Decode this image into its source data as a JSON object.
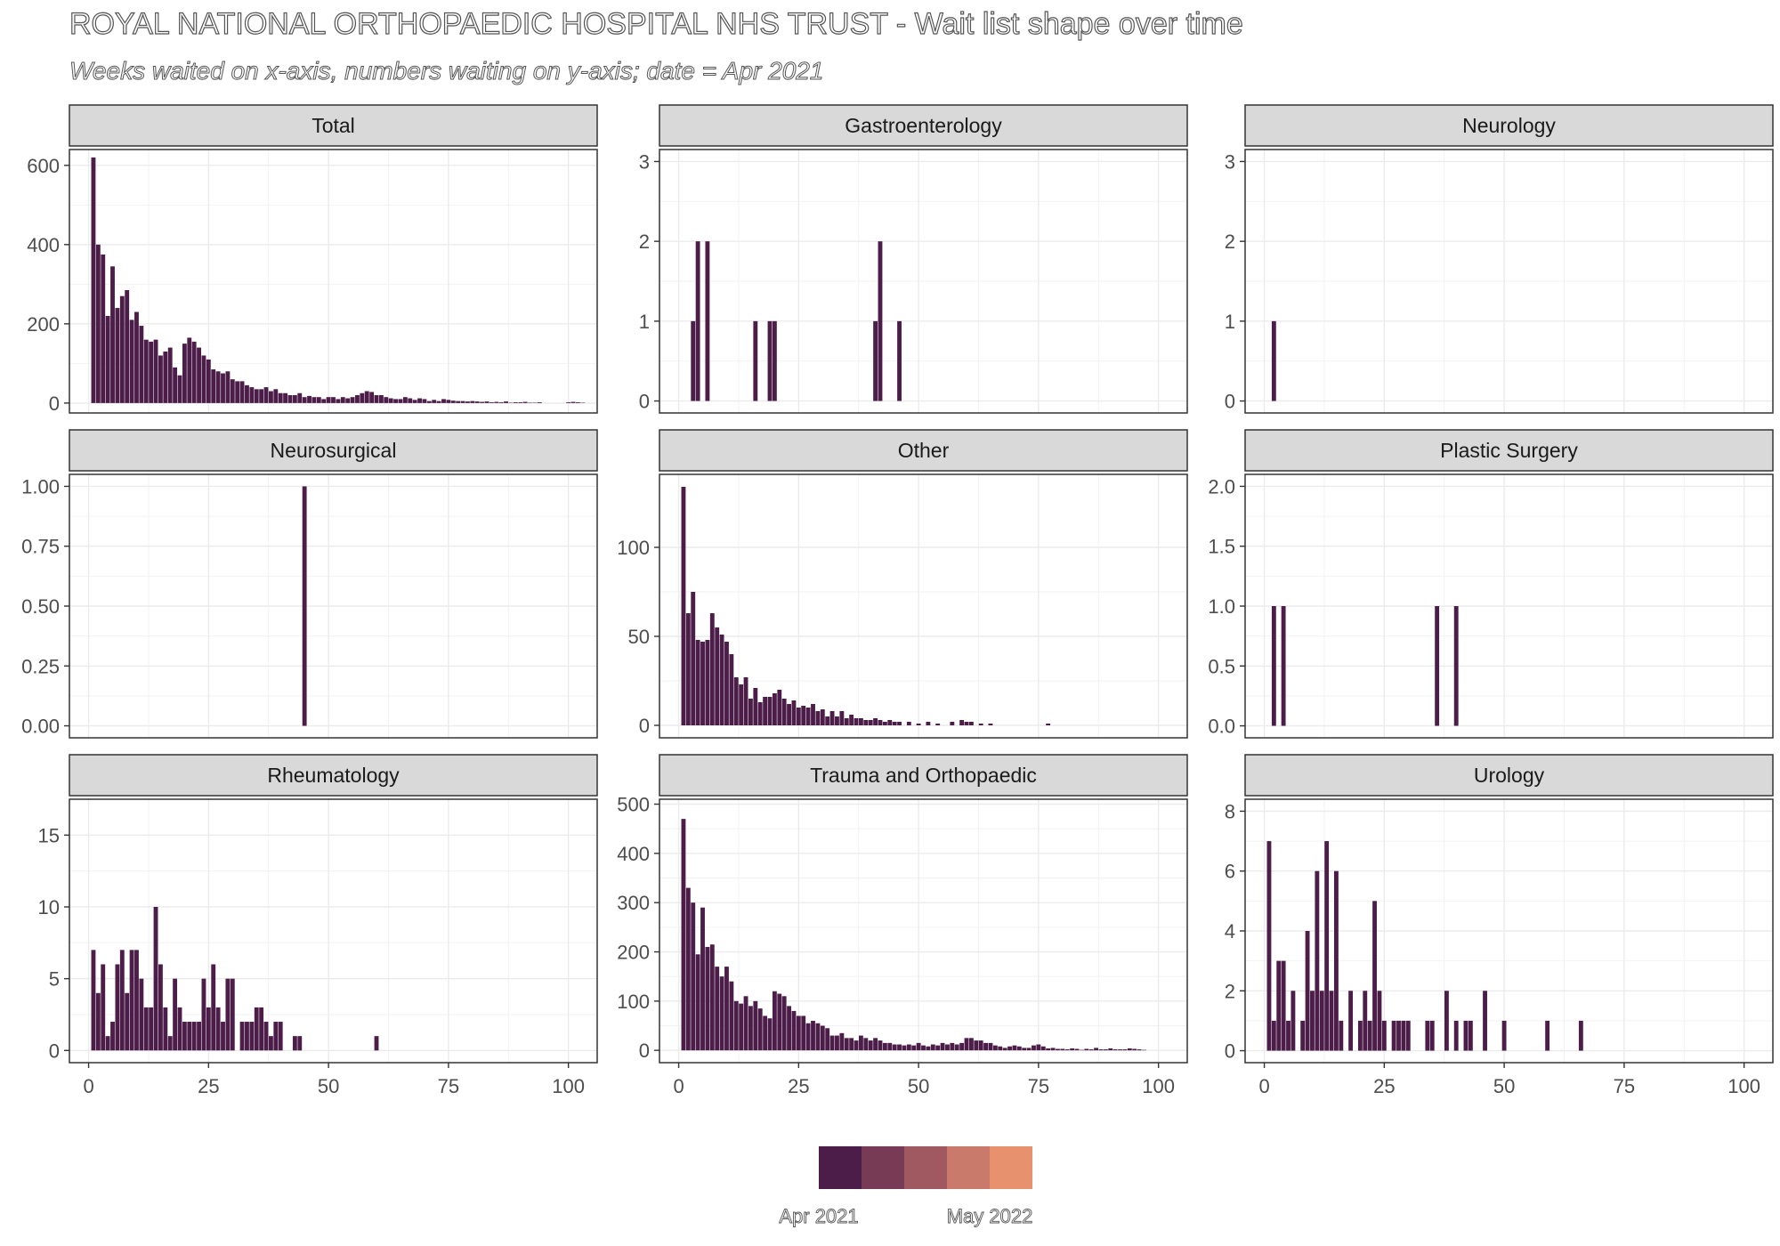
{
  "title": "ROYAL NATIONAL ORTHOPAEDIC HOSPITAL NHS TRUST - Wait list shape over time",
  "subtitle": "Weeks waited on x-axis, numbers waiting on y-axis; date = Apr 2021",
  "bar_color": "#4B1D48",
  "legend": {
    "colors": [
      "#4B1D48",
      "#773B55",
      "#A05960",
      "#C97A6B",
      "#E8916F"
    ],
    "labels": [
      "Apr 2021",
      "May 2022"
    ]
  },
  "chart_data": [
    {
      "type": "bar",
      "title": "Total",
      "xlim": [
        -4,
        106
      ],
      "ylim": [
        -25,
        640
      ],
      "ybreaks": [
        0,
        200,
        400,
        600
      ],
      "ylabels": [
        "0",
        "200",
        "400",
        "600"
      ],
      "xbreaks": [
        0,
        25,
        50,
        75,
        100
      ],
      "show_x": false,
      "x": [
        1,
        2,
        3,
        4,
        5,
        6,
        7,
        8,
        9,
        10,
        11,
        12,
        13,
        14,
        15,
        16,
        17,
        18,
        19,
        20,
        21,
        22,
        23,
        24,
        25,
        26,
        27,
        28,
        29,
        30,
        31,
        32,
        33,
        34,
        35,
        36,
        37,
        38,
        39,
        40,
        41,
        42,
        43,
        44,
        45,
        46,
        47,
        48,
        49,
        50,
        51,
        52,
        53,
        54,
        55,
        56,
        57,
        58,
        59,
        60,
        61,
        62,
        63,
        64,
        65,
        66,
        67,
        68,
        69,
        70,
        71,
        72,
        73,
        74,
        75,
        76,
        77,
        78,
        79,
        80,
        81,
        82,
        83,
        84,
        85,
        86,
        87,
        88,
        89,
        90,
        91,
        92,
        93,
        94,
        95,
        96,
        97,
        98,
        99,
        100,
        101,
        102,
        103,
        104
      ],
      "y": [
        620,
        400,
        375,
        220,
        345,
        240,
        270,
        285,
        210,
        230,
        195,
        160,
        155,
        160,
        120,
        130,
        140,
        90,
        70,
        150,
        165,
        155,
        140,
        120,
        110,
        85,
        80,
        75,
        80,
        60,
        55,
        55,
        45,
        40,
        35,
        35,
        40,
        30,
        35,
        25,
        25,
        20,
        20,
        25,
        15,
        18,
        15,
        15,
        10,
        15,
        15,
        10,
        15,
        12,
        15,
        20,
        25,
        30,
        28,
        20,
        20,
        15,
        12,
        10,
        10,
        15,
        12,
        8,
        12,
        10,
        5,
        8,
        5,
        10,
        8,
        6,
        5,
        5,
        4,
        5,
        4,
        3,
        4,
        2,
        3,
        2,
        4,
        1,
        2,
        2,
        3,
        1,
        1,
        2,
        0,
        0,
        0,
        0,
        0,
        2,
        3,
        2,
        1,
        0
      ]
    },
    {
      "type": "bar",
      "title": "Gastroenterology",
      "xlim": [
        -4,
        106
      ],
      "ylim": [
        -0.15,
        3.15
      ],
      "ybreaks": [
        0,
        1,
        2,
        3
      ],
      "ylabels": [
        "0",
        "1",
        "2",
        "3"
      ],
      "xbreaks": [
        0,
        25,
        50,
        75,
        100
      ],
      "show_x": false,
      "x": [
        3,
        4,
        6,
        16,
        19,
        20,
        41,
        42,
        46
      ],
      "y": [
        1,
        2,
        2,
        1,
        1,
        1,
        1,
        2,
        1
      ]
    },
    {
      "type": "bar",
      "title": "Neurology",
      "xlim": [
        -4,
        106
      ],
      "ylim": [
        -0.15,
        3.15
      ],
      "ybreaks": [
        0,
        1,
        2,
        3
      ],
      "ylabels": [
        "0",
        "1",
        "2",
        "3"
      ],
      "xbreaks": [
        0,
        25,
        50,
        75,
        100
      ],
      "show_x": false,
      "x": [
        2
      ],
      "y": [
        1
      ]
    },
    {
      "type": "bar",
      "title": "Neurosurgical",
      "xlim": [
        -4,
        106
      ],
      "ylim": [
        -0.05,
        1.05
      ],
      "ybreaks": [
        0,
        0.25,
        0.5,
        0.75,
        1
      ],
      "ylabels": [
        "0.00",
        "0.25",
        "0.50",
        "0.75",
        "1.00"
      ],
      "xbreaks": [
        0,
        25,
        50,
        75,
        100
      ],
      "show_x": false,
      "x": [
        45
      ],
      "y": [
        1
      ]
    },
    {
      "type": "bar",
      "title": "Other",
      "xlim": [
        -4,
        106
      ],
      "ylim": [
        -7,
        141
      ],
      "ybreaks": [
        0,
        50,
        100
      ],
      "ylabels": [
        "0",
        "50",
        "100"
      ],
      "xbreaks": [
        0,
        25,
        50,
        75,
        100
      ],
      "show_x": false,
      "x": [
        1,
        2,
        3,
        4,
        5,
        6,
        7,
        8,
        9,
        10,
        11,
        12,
        13,
        14,
        15,
        16,
        17,
        18,
        19,
        20,
        21,
        22,
        23,
        24,
        25,
        26,
        27,
        28,
        29,
        30,
        31,
        32,
        33,
        34,
        35,
        36,
        37,
        38,
        39,
        40,
        41,
        42,
        43,
        44,
        45,
        46,
        47,
        48,
        49,
        50,
        51,
        52,
        53,
        54,
        55,
        56,
        57,
        58,
        59,
        60,
        61,
        62,
        63,
        64,
        65,
        66,
        77
      ],
      "y": [
        134,
        63,
        75,
        48,
        47,
        48,
        63,
        55,
        51,
        47,
        40,
        27,
        23,
        27,
        15,
        21,
        13,
        16,
        16,
        18,
        20,
        15,
        12,
        14,
        10,
        11,
        10,
        12,
        8,
        9,
        5,
        8,
        5,
        8,
        4,
        6,
        4,
        4,
        3,
        3,
        4,
        3,
        2,
        3,
        2,
        2,
        0,
        2,
        0,
        1,
        0,
        2,
        0,
        1,
        0,
        0,
        2,
        0,
        3,
        2,
        2,
        0,
        1,
        0,
        1,
        0,
        1
      ]
    },
    {
      "type": "bar",
      "title": "Plastic Surgery",
      "xlim": [
        -4,
        106
      ],
      "ylim": [
        -0.1,
        2.1
      ],
      "ybreaks": [
        0,
        0.5,
        1,
        1.5,
        2
      ],
      "ylabels": [
        "0.0",
        "0.5",
        "1.0",
        "1.5",
        "2.0"
      ],
      "xbreaks": [
        0,
        25,
        50,
        75,
        100
      ],
      "show_x": false,
      "x": [
        2,
        4,
        36,
        40
      ],
      "y": [
        1,
        1,
        1,
        1
      ]
    },
    {
      "type": "bar",
      "title": "Rheumatology",
      "xlim": [
        -4,
        106
      ],
      "ylim": [
        -0.85,
        17.5
      ],
      "ybreaks": [
        0,
        5,
        10,
        15
      ],
      "ylabels": [
        "0",
        "5",
        "10",
        "15"
      ],
      "xbreaks": [
        0,
        25,
        50,
        75,
        100
      ],
      "xlabels": [
        "0",
        "25",
        "50",
        "75",
        "100"
      ],
      "show_x": true,
      "x": [
        1,
        2,
        3,
        4,
        5,
        6,
        7,
        8,
        9,
        10,
        11,
        12,
        13,
        14,
        15,
        16,
        17,
        18,
        19,
        20,
        21,
        22,
        23,
        24,
        25,
        26,
        27,
        28,
        29,
        30,
        31,
        32,
        33,
        34,
        35,
        36,
        37,
        38,
        39,
        40,
        41,
        42,
        43,
        44,
        60
      ],
      "y": [
        7,
        4,
        6,
        1,
        2,
        6,
        7,
        4,
        7,
        7,
        5,
        3,
        3,
        10,
        6,
        3,
        1,
        5,
        3,
        2,
        2,
        2,
        2,
        5,
        3,
        6,
        3,
        2,
        5,
        5,
        0,
        2,
        2,
        2,
        3,
        3,
        2,
        1,
        2,
        2,
        0,
        0,
        1,
        1,
        1
      ]
    },
    {
      "type": "bar",
      "title": "Trauma and Orthopaedic",
      "xlim": [
        -4,
        106
      ],
      "ylim": [
        -25,
        510
      ],
      "ybreaks": [
        0,
        100,
        200,
        300,
        400,
        500
      ],
      "ylabels": [
        "0",
        "100",
        "200",
        "300",
        "400",
        "500"
      ],
      "xbreaks": [
        0,
        25,
        50,
        75,
        100
      ],
      "xlabels": [
        "0",
        "25",
        "50",
        "75",
        "100"
      ],
      "show_x": true,
      "x": [
        1,
        2,
        3,
        4,
        5,
        6,
        7,
        8,
        9,
        10,
        11,
        12,
        13,
        14,
        15,
        16,
        17,
        18,
        19,
        20,
        21,
        22,
        23,
        24,
        25,
        26,
        27,
        28,
        29,
        30,
        31,
        32,
        33,
        34,
        35,
        36,
        37,
        38,
        39,
        40,
        41,
        42,
        43,
        44,
        45,
        46,
        47,
        48,
        49,
        50,
        51,
        52,
        53,
        54,
        55,
        56,
        57,
        58,
        59,
        60,
        61,
        62,
        63,
        64,
        65,
        66,
        67,
        68,
        69,
        70,
        71,
        72,
        73,
        74,
        75,
        76,
        77,
        78,
        79,
        80,
        81,
        82,
        83,
        84,
        85,
        86,
        87,
        88,
        89,
        90,
        91,
        92,
        93,
        94,
        95,
        96,
        97
      ],
      "y": [
        470,
        330,
        300,
        195,
        290,
        210,
        215,
        170,
        150,
        170,
        140,
        100,
        95,
        110,
        90,
        100,
        85,
        70,
        65,
        120,
        115,
        110,
        90,
        80,
        70,
        70,
        55,
        60,
        55,
        50,
        45,
        30,
        30,
        35,
        25,
        25,
        20,
        30,
        25,
        20,
        25,
        20,
        15,
        15,
        12,
        12,
        10,
        12,
        10,
        15,
        10,
        8,
        12,
        10,
        15,
        12,
        15,
        12,
        15,
        25,
        25,
        20,
        20,
        15,
        15,
        10,
        8,
        5,
        8,
        10,
        8,
        5,
        5,
        10,
        12,
        8,
        4,
        5,
        3,
        3,
        2,
        4,
        3,
        1,
        3,
        2,
        5,
        2,
        2,
        4,
        2,
        2,
        2,
        4,
        3,
        2,
        1
      ]
    },
    {
      "type": "bar",
      "title": "Urology",
      "xlim": [
        -4,
        106
      ],
      "ylim": [
        -0.4,
        8.4
      ],
      "ybreaks": [
        0,
        2,
        4,
        6,
        8
      ],
      "ylabels": [
        "0",
        "2",
        "4",
        "6",
        "8"
      ],
      "xbreaks": [
        0,
        25,
        50,
        75,
        100
      ],
      "xlabels": [
        "0",
        "25",
        "50",
        "75",
        "100"
      ],
      "show_x": true,
      "x": [
        1,
        2,
        3,
        4,
        5,
        6,
        8,
        9,
        10,
        11,
        12,
        13,
        14,
        15,
        16,
        17,
        18,
        19,
        20,
        21,
        22,
        23,
        24,
        25,
        27,
        28,
        29,
        30,
        34,
        35,
        38,
        40,
        42,
        43,
        46,
        50,
        59,
        66
      ],
      "y": [
        7,
        1,
        3,
        3,
        1,
        2,
        1,
        4,
        2,
        6,
        2,
        7,
        2,
        6,
        1,
        0,
        2,
        0,
        1,
        2,
        1,
        5,
        2,
        1,
        1,
        1,
        1,
        1,
        1,
        1,
        2,
        1,
        1,
        1,
        2,
        1,
        1,
        1
      ]
    }
  ]
}
